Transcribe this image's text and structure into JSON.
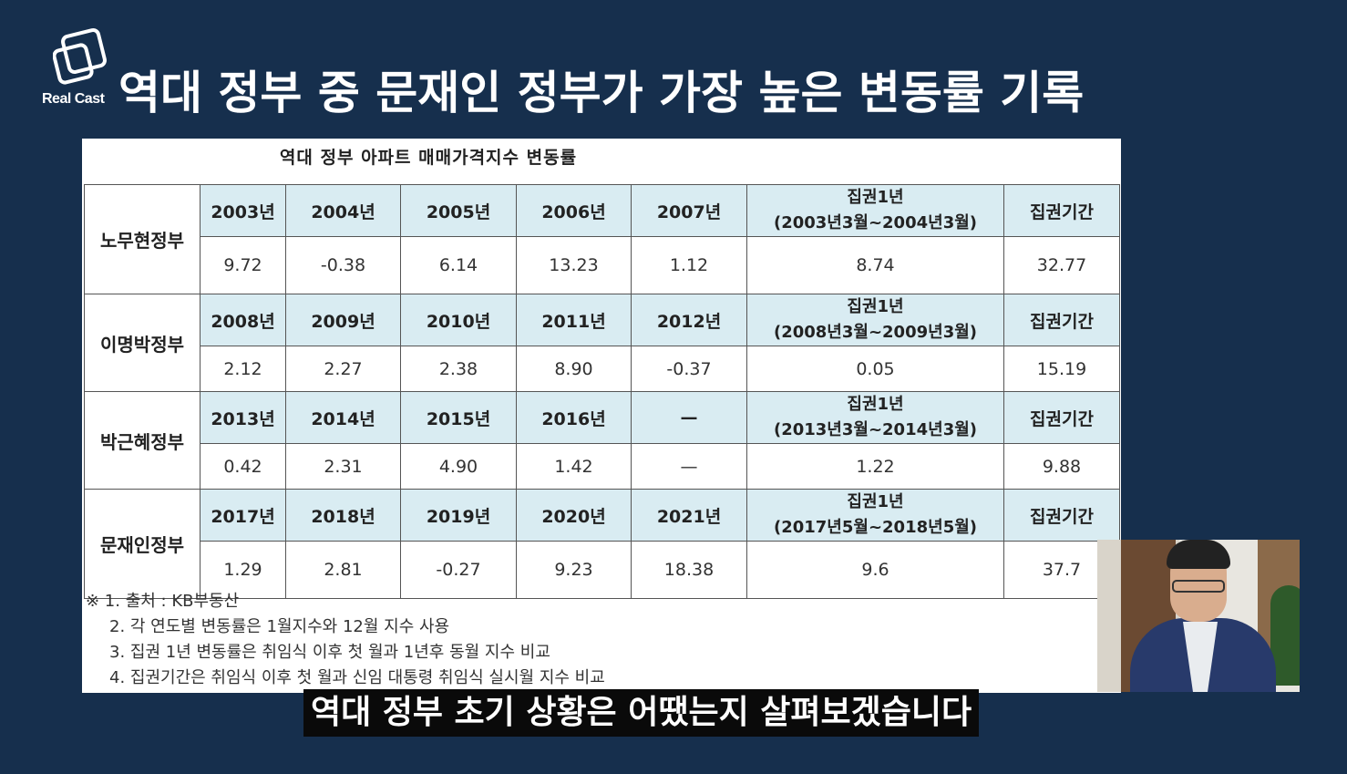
{
  "brand": {
    "logo_text": "Real Cast"
  },
  "headline": "역대 정부 중 문재인 정부가 가장 높은 변동률 기록",
  "table": {
    "title": "역대 정부 아파트 매매가격지수 변동률",
    "governments": [
      {
        "name": "노무현정부",
        "years": [
          "2003년",
          "2004년",
          "2005년",
          "2006년",
          "2007년"
        ],
        "values": [
          "9.72",
          "-0.38",
          "6.14",
          "13.23",
          "1.12"
        ],
        "first_year_label": "집권1년",
        "first_year_period": "(2003년3월~2004년3월)",
        "first_year_value": "8.74",
        "term_label": "집권기간",
        "term_value": "32.77"
      },
      {
        "name": "이명박정부",
        "years": [
          "2008년",
          "2009년",
          "2010년",
          "2011년",
          "2012년"
        ],
        "values": [
          "2.12",
          "2.27",
          "2.38",
          "8.90",
          "-0.37"
        ],
        "first_year_label": "집권1년",
        "first_year_period": "(2008년3월~2009년3월)",
        "first_year_value": "0.05",
        "term_label": "집권기간",
        "term_value": "15.19"
      },
      {
        "name": "박근혜정부",
        "years": [
          "2013년",
          "2014년",
          "2015년",
          "2016년",
          "—"
        ],
        "values": [
          "0.42",
          "2.31",
          "4.90",
          "1.42",
          "—"
        ],
        "first_year_label": "집권1년",
        "first_year_period": "(2013년3월~2014년3월)",
        "first_year_value": "1.22",
        "term_label": "집권기간",
        "term_value": "9.88"
      },
      {
        "name": "문재인정부",
        "years": [
          "2017년",
          "2018년",
          "2019년",
          "2020년",
          "2021년"
        ],
        "values": [
          "1.29",
          "2.81",
          "-0.27",
          "9.23",
          "18.38"
        ],
        "first_year_label": "집권1년",
        "first_year_period": "(2017년5월~2018년5월)",
        "first_year_value": "9.6",
        "term_label": "집권기간",
        "term_value": "37.7"
      }
    ],
    "notes": [
      "※ 1. 출처 : KB부동산",
      "2. 각 연도별 변동률은 1월지수와 12월 지수 사용",
      "3. 집권 1년 변동률은 취임식 이후 첫 월과 1년후 동월 지수 비교",
      "4. 집권기간은 취임식 이후 첫 월과 신임 대통령 취임식 실시월 지수 비교"
    ]
  },
  "subtitle": "역대 정부 초기 상황은 어땠는지 살펴보겠습니다"
}
